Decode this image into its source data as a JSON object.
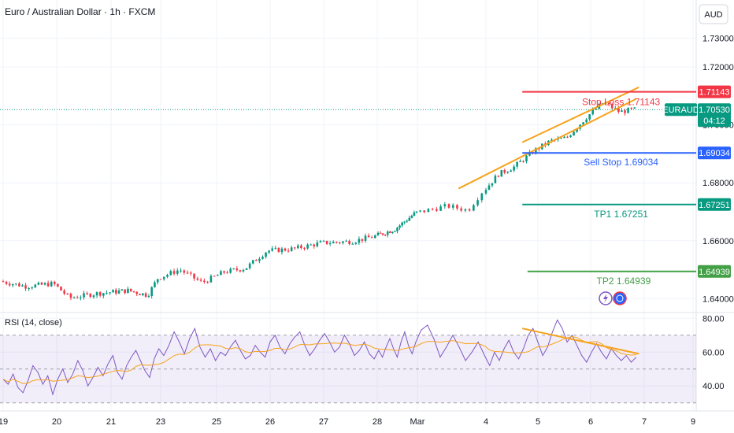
{
  "header": {
    "title": "Euro / Australian Dollar · 1h · FXCM",
    "currency": "AUD"
  },
  "chart_data": {
    "type": "candlestick",
    "title": "Euro / Australian Dollar · 1h · FXCM",
    "symbol": "EURAUD",
    "price_axis": {
      "ylim": [
        1.636,
        1.735
      ],
      "ticks": [
        "1.64000",
        "1.66000",
        "1.68000",
        "1.70000",
        "1.72000",
        "1.73000"
      ]
    },
    "time_axis": {
      "labels": [
        "19",
        "20",
        "21",
        "23",
        "25",
        "26",
        "27",
        "28",
        "Mar",
        "4",
        "5",
        "6",
        "7",
        "9"
      ]
    },
    "price_path": [
      {
        "day": 0.0,
        "price": 1.646
      },
      {
        "day": 0.5,
        "price": 1.6442
      },
      {
        "day": 1.0,
        "price": 1.6452
      },
      {
        "day": 1.3,
        "price": 1.6402
      },
      {
        "day": 1.8,
        "price": 1.6418
      },
      {
        "day": 2.4,
        "price": 1.6428
      },
      {
        "day": 2.8,
        "price": 1.6412
      },
      {
        "day": 3.0,
        "price": 1.647
      },
      {
        "day": 3.4,
        "price": 1.65
      },
      {
        "day": 3.8,
        "price": 1.6455
      },
      {
        "day": 4.2,
        "price": 1.6492
      },
      {
        "day": 4.6,
        "price": 1.6505
      },
      {
        "day": 5.0,
        "price": 1.6565
      },
      {
        "day": 5.5,
        "price": 1.6572
      },
      {
        "day": 6.0,
        "price": 1.6592
      },
      {
        "day": 6.6,
        "price": 1.6598
      },
      {
        "day": 7.0,
        "price": 1.6615
      },
      {
        "day": 7.5,
        "price": 1.664
      },
      {
        "day": 8.0,
        "price": 1.6695
      },
      {
        "day": 8.5,
        "price": 1.672
      },
      {
        "day": 8.8,
        "price": 1.6705
      },
      {
        "day": 9.0,
        "price": 1.6768
      },
      {
        "day": 9.3,
        "price": 1.683
      },
      {
        "day": 9.6,
        "price": 1.6855
      },
      {
        "day": 10.0,
        "price": 1.6912
      },
      {
        "day": 10.3,
        "price": 1.6945
      },
      {
        "day": 10.6,
        "price": 1.6955
      },
      {
        "day": 11.0,
        "price": 1.703
      },
      {
        "day": 11.3,
        "price": 1.7078
      },
      {
        "day": 11.6,
        "price": 1.7045
      },
      {
        "day": 11.85,
        "price": 1.7053
      }
    ],
    "levels": [
      {
        "name": "Stop Loss",
        "label": "Stop Loss 1.71143",
        "price": 1.71143,
        "axis_label": "1.71143",
        "color": "#f23645",
        "start_day": 9.7
      },
      {
        "name": "Sell Stop",
        "label": "Sell Stop 1.69034",
        "price": 1.69034,
        "axis_label": "1.69034",
        "color": "#2962ff",
        "start_day": 9.7
      },
      {
        "name": "TP1",
        "label": "TP1 1.67251",
        "price": 1.67251,
        "axis_label": "1.67251",
        "color": "#089981",
        "start_day": 9.7
      },
      {
        "name": "TP2",
        "label": "TP2 1.64939",
        "price": 1.64939,
        "axis_label": "1.64939",
        "color": "#43a047",
        "start_day": 9.8
      }
    ],
    "current_price": {
      "symbol": "EURAUD",
      "price": 1.7053,
      "label": "1.70530",
      "countdown": "04:12",
      "color": "#089981"
    },
    "wedge": {
      "upper": [
        {
          "day": 9.7,
          "price": 1.694
        },
        {
          "day": 11.9,
          "price": 1.713
        }
      ],
      "lower": [
        {
          "day": 8.6,
          "price": 1.678
        },
        {
          "day": 11.85,
          "price": 1.709
        }
      ],
      "color": "#f7a21b"
    },
    "rsi": {
      "label": "RSI (14, close)",
      "ylim": [
        28,
        82
      ],
      "ticks": [
        "80.00",
        "60.00",
        "40.00"
      ],
      "bands": [
        30,
        50,
        70
      ],
      "values": [
        44,
        41,
        47,
        39,
        36,
        43,
        52,
        48,
        41,
        46,
        35,
        44,
        50,
        42,
        47,
        55,
        49,
        40,
        45,
        51,
        46,
        53,
        58,
        48,
        44,
        52,
        57,
        61,
        55,
        49,
        45,
        56,
        62,
        58,
        64,
        72,
        66,
        59,
        68,
        74,
        63,
        57,
        62,
        55,
        60,
        58,
        63,
        67,
        61,
        56,
        58,
        64,
        60,
        57,
        66,
        70,
        63,
        59,
        65,
        69,
        72,
        64,
        58,
        62,
        67,
        71,
        66,
        60,
        63,
        70,
        65,
        58,
        61,
        66,
        59,
        56,
        61,
        57,
        63,
        68,
        62,
        57,
        66,
        72,
        64,
        59,
        66,
        73,
        76,
        68,
        57,
        63,
        70,
        63,
        55,
        60,
        66,
        58,
        52,
        60,
        55,
        62,
        67,
        60,
        56,
        62,
        70,
        74,
        66,
        58,
        63,
        72,
        79,
        74,
        66,
        70,
        64,
        58,
        54,
        60,
        65,
        60,
        56,
        62,
        58,
        55,
        58,
        54,
        57
      ],
      "trendline": [
        {
          "day": 9.7,
          "price": 74
        },
        {
          "day": 11.9,
          "price": 59
        }
      ],
      "line_color": "#7e57c2",
      "ma_color": "#f7a21b"
    }
  }
}
